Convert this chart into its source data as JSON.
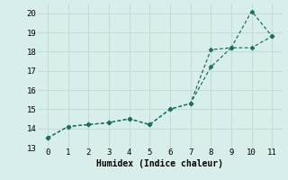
{
  "xlabel": "Humidex (Indice chaleur)",
  "xlim": [
    -0.5,
    11.5
  ],
  "ylim": [
    13,
    20.5
  ],
  "xticks": [
    0,
    1,
    2,
    3,
    4,
    5,
    6,
    7,
    8,
    9,
    10,
    11
  ],
  "yticks": [
    13,
    14,
    15,
    16,
    17,
    18,
    19,
    20
  ],
  "bg_color": "#d8eeea",
  "grid_color": "#c2dcd7",
  "line_color": "#1a7060",
  "line1_x": [
    0,
    1,
    2,
    3,
    4,
    5,
    6,
    7,
    8,
    9,
    10,
    11
  ],
  "line1_y": [
    13.5,
    14.1,
    14.2,
    14.3,
    14.5,
    14.2,
    15.0,
    15.3,
    18.1,
    18.2,
    20.1,
    18.8
  ],
  "line2_x": [
    0,
    1,
    2,
    3,
    4,
    5,
    6,
    7,
    8,
    9,
    10,
    11
  ],
  "line2_y": [
    13.5,
    14.1,
    14.2,
    14.3,
    14.5,
    14.2,
    15.0,
    15.3,
    17.2,
    18.2,
    18.2,
    18.8
  ]
}
